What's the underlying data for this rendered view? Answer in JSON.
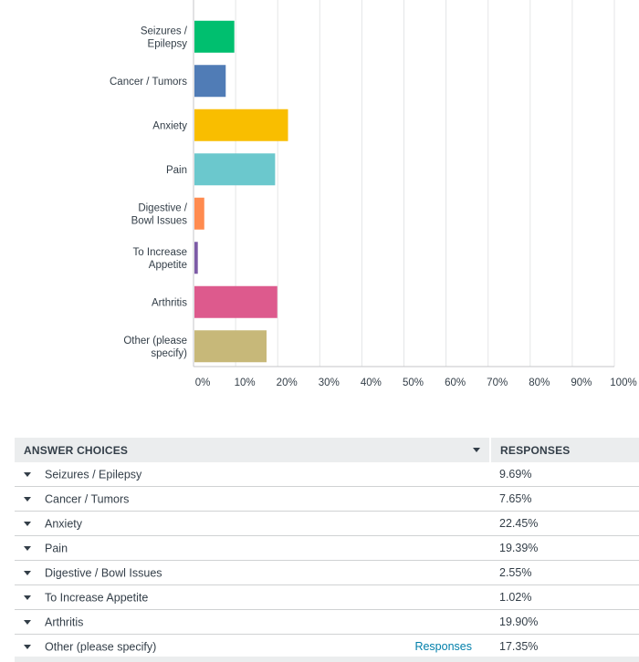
{
  "chart_data": {
    "type": "bar",
    "orientation": "horizontal",
    "categories": [
      [
        "Seizures /",
        "Epilepsy"
      ],
      [
        "Cancer / Tumors"
      ],
      [
        "Anxiety"
      ],
      [
        "Pain"
      ],
      [
        "Digestive /",
        "Bowl Issues"
      ],
      [
        "To Increase",
        "Appetite"
      ],
      [
        "Arthritis"
      ],
      [
        "Other (please",
        "specify)"
      ]
    ],
    "values": [
      9.69,
      7.65,
      22.45,
      19.39,
      2.55,
      1.02,
      19.9,
      17.35
    ],
    "colors": [
      "#00bf6f",
      "#507cb6",
      "#f9be00",
      "#6bc8cd",
      "#ff8b4f",
      "#7d5ba6",
      "#dd5a8d",
      "#c7b879"
    ],
    "xlim": [
      0,
      100
    ],
    "xticks": [
      0,
      10,
      20,
      30,
      40,
      50,
      60,
      70,
      80,
      90,
      100
    ],
    "xtick_labels": [
      "0%",
      "10%",
      "20%",
      "30%",
      "40%",
      "50%",
      "60%",
      "70%",
      "80%",
      "90%",
      "100%"
    ],
    "grid": true
  },
  "table": {
    "headers": {
      "choices": "ANSWER CHOICES",
      "responses": "RESPONSES"
    },
    "rows": [
      {
        "choice": "Seizures / Epilepsy",
        "response": "9.69%"
      },
      {
        "choice": "Cancer / Tumors",
        "response": "7.65%"
      },
      {
        "choice": "Anxiety",
        "response": "22.45%"
      },
      {
        "choice": "Pain",
        "response": "19.39%"
      },
      {
        "choice": "Digestive / Bowl Issues",
        "response": "2.55%"
      },
      {
        "choice": "To Increase Appetite",
        "response": "1.02%"
      },
      {
        "choice": "Arthritis",
        "response": "19.90%"
      },
      {
        "choice": "Other (please specify)",
        "response": "17.35%",
        "link": "Responses"
      }
    ]
  },
  "colors": {
    "link": "#007faa",
    "header_bg": "#ebedee",
    "text": "#333e48"
  }
}
